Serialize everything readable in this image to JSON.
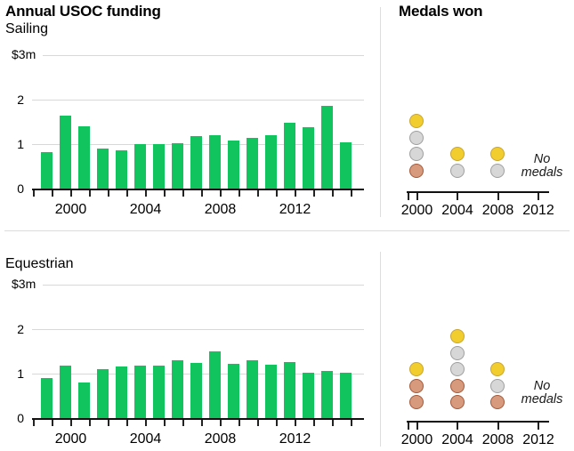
{
  "colors": {
    "bar": "#12c45e",
    "grid": "#d8d8d8",
    "axis": "#111111",
    "tick": "#222222",
    "divider": "#dddddd",
    "gold_fill": "#f2cd2e",
    "gold_stroke": "#c8a433",
    "silver_fill": "#d7d7d7",
    "silver_stroke": "#9f9f9f",
    "bronze_fill": "#d79a7d",
    "bronze_stroke": "#a4593b"
  },
  "chart_data": [
    {
      "id": "sailing-funding",
      "type": "bar",
      "title": "Annual USOC funding",
      "subtitle": "Sailing",
      "ylabel_top": "$3m",
      "unit": "$m",
      "ylim": [
        0,
        3
      ],
      "yticks": [
        "0",
        "1",
        "2"
      ],
      "grid": true,
      "years": [
        1999,
        2000,
        2001,
        2002,
        2003,
        2004,
        2005,
        2006,
        2007,
        2008,
        2009,
        2010,
        2011,
        2012,
        2013,
        2014,
        2015
      ],
      "values": [
        0.82,
        1.63,
        1.4,
        0.9,
        0.86,
        1.0,
        1.0,
        1.02,
        1.18,
        1.2,
        1.08,
        1.15,
        1.2,
        1.47,
        1.38,
        1.86,
        1.04
      ],
      "xticks": [
        "2000",
        "2004",
        "2008",
        "2012"
      ]
    },
    {
      "id": "sailing-medals",
      "type": "scatter",
      "title": "Medals won",
      "subtitle": "Sailing",
      "years": [
        "2000",
        "2004",
        "2008",
        "2012"
      ],
      "stacks_bottom_to_top": [
        [
          "bronze",
          "silver",
          "silver",
          "gold"
        ],
        [
          "silver",
          "gold"
        ],
        [
          "silver",
          "gold"
        ],
        []
      ],
      "no_medals_note": "No medals"
    },
    {
      "id": "equestrian-funding",
      "type": "bar",
      "title": "Annual USOC funding",
      "subtitle": "Equestrian",
      "ylabel_top": "$3m",
      "unit": "$m",
      "ylim": [
        0,
        3
      ],
      "yticks": [
        "0",
        "1",
        "2"
      ],
      "grid": true,
      "years": [
        1999,
        2000,
        2001,
        2002,
        2003,
        2004,
        2005,
        2006,
        2007,
        2008,
        2009,
        2010,
        2011,
        2012,
        2013,
        2014,
        2015
      ],
      "values": [
        0.9,
        1.18,
        0.8,
        1.09,
        1.16,
        1.17,
        1.17,
        1.3,
        1.24,
        1.5,
        1.22,
        1.29,
        1.2,
        1.26,
        1.02,
        1.06,
        1.01
      ],
      "xticks": [
        "2000",
        "2004",
        "2008",
        "2012"
      ]
    },
    {
      "id": "equestrian-medals",
      "type": "scatter",
      "title": "Medals won",
      "subtitle": "Equestrian",
      "years": [
        "2000",
        "2004",
        "2008",
        "2012"
      ],
      "stacks_bottom_to_top": [
        [
          "bronze",
          "bronze",
          "gold"
        ],
        [
          "bronze",
          "bronze",
          "silver",
          "silver",
          "gold"
        ],
        [
          "bronze",
          "silver",
          "gold"
        ],
        []
      ],
      "no_medals_note": "No medals"
    }
  ]
}
